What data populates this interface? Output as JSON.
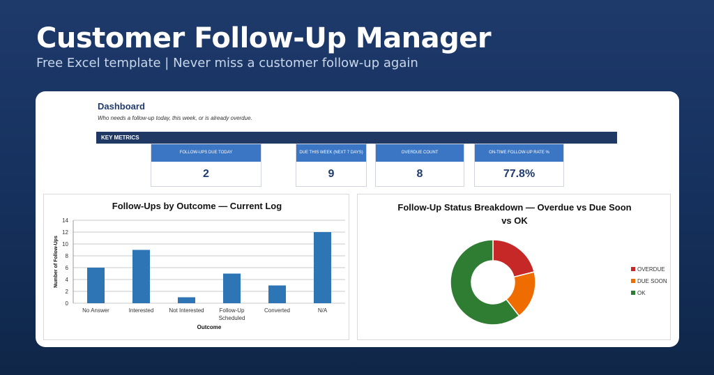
{
  "hero": {
    "title": "Customer Follow-Up Manager",
    "subtitle": "Free Excel template  |  Never miss a customer follow-up again"
  },
  "dashboard": {
    "title": "Dashboard",
    "subtitle": "Who needs a follow-up today, this week, or is already overdue.",
    "key_metrics_label": "KEY METRICS",
    "metrics": [
      {
        "label": "FOLLOW-UPS DUE TODAY",
        "value": "2"
      },
      {
        "label": "DUE THIS WEEK (NEXT 7 DAYS)",
        "value": "9"
      },
      {
        "label": "OVERDUE COUNT",
        "value": "8"
      },
      {
        "label": "ON-TIME FOLLOW-UP RATE %",
        "value": "77.8%"
      }
    ]
  },
  "colors": {
    "bar": "#2e75b6",
    "header": "#1f3864",
    "metric_header": "#3a76c4",
    "overdue": "#c62828",
    "due_soon": "#ef6c00",
    "ok": "#2e7d32"
  },
  "chart_data": [
    {
      "type": "bar",
      "title": "Follow-Ups by Outcome — Current Log",
      "xlabel": "Outcome",
      "ylabel": "Number of Follow-Ups",
      "categories": [
        "No Answer",
        "Interested",
        "Not Interested",
        "Follow-Up Scheduled",
        "Converted",
        "N/A"
      ],
      "values": [
        6,
        9,
        1,
        5,
        3,
        12
      ],
      "ylim": [
        0,
        14
      ],
      "yticks": [
        0,
        2,
        4,
        6,
        8,
        10,
        12,
        14
      ],
      "grid": true,
      "legend": "none"
    },
    {
      "type": "pie",
      "title": "Follow-Up Status Breakdown — Overdue vs Due Soon vs OK",
      "labels": [
        "OVERDUE",
        "DUE SOON",
        "OK"
      ],
      "values": [
        8,
        7,
        23
      ],
      "hole": true,
      "legend": "right"
    }
  ]
}
